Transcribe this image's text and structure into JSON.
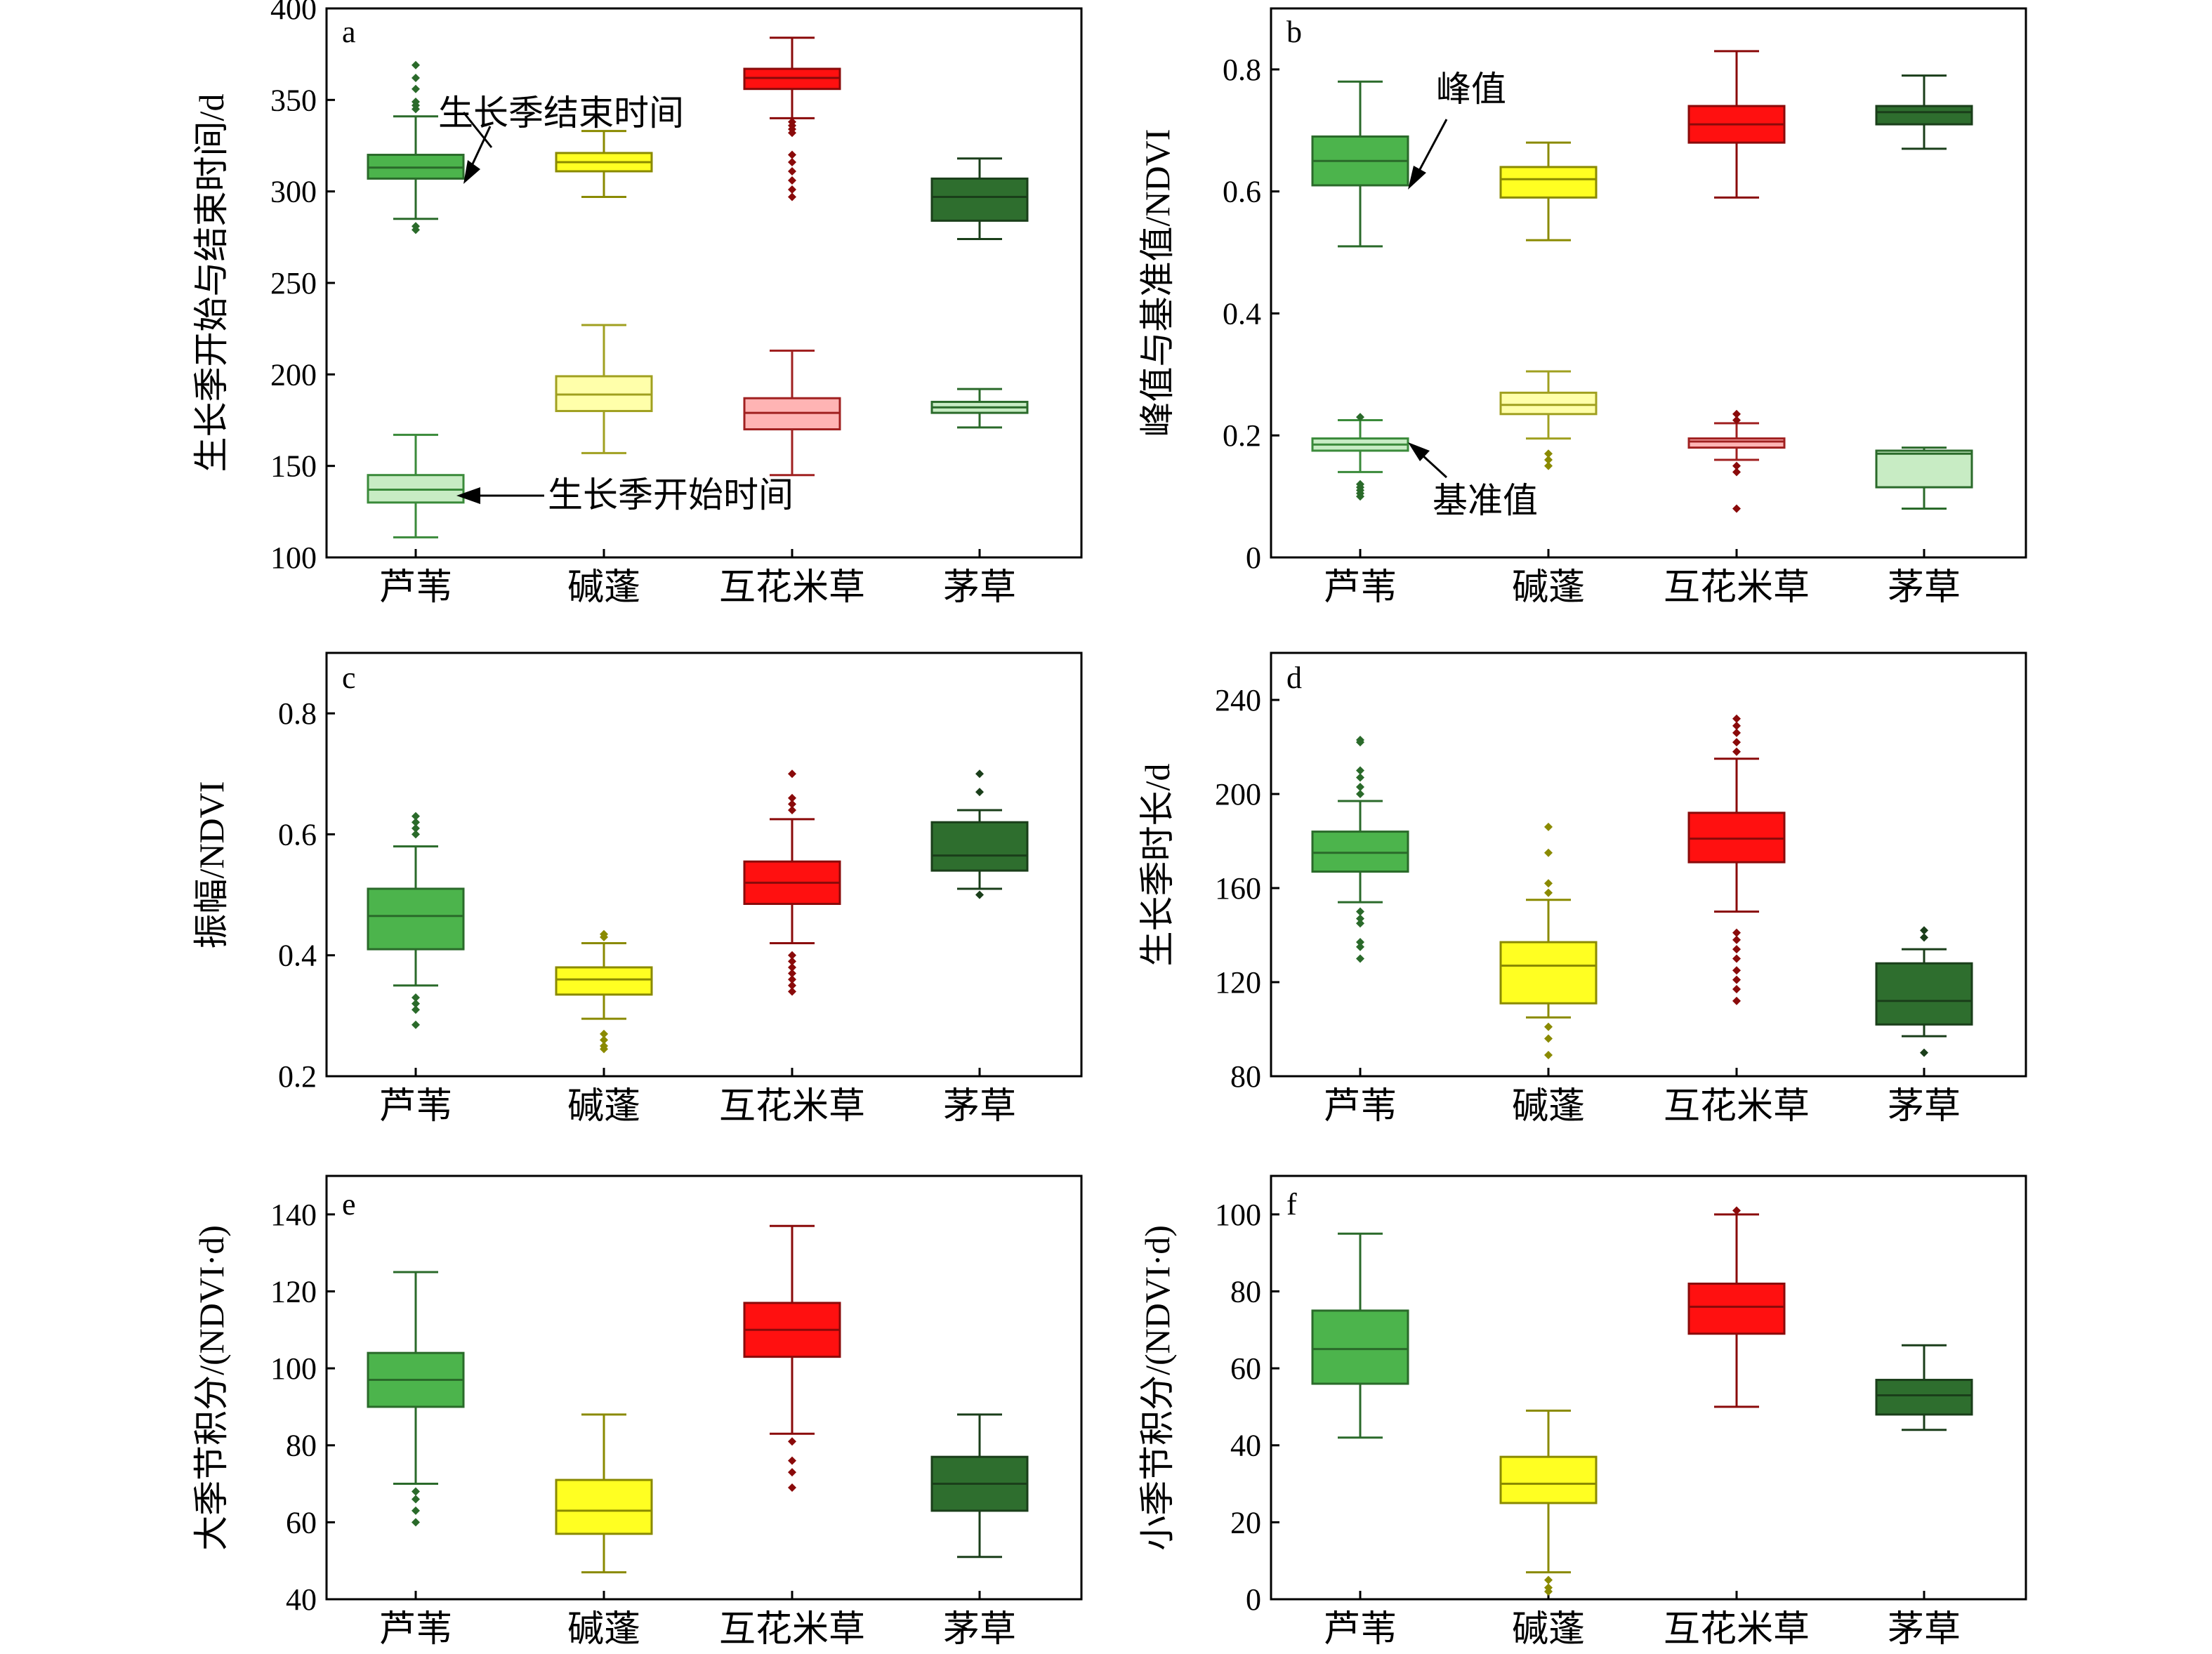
{
  "categories": [
    "芦苇",
    "碱蓬",
    "互花米草",
    "茅草"
  ],
  "colors": {
    "芦苇": {
      "fill": "#4cb44c",
      "dark": "#2a6a2a",
      "light": "#c8ecc4",
      "lightEdge": "#3a8a3a"
    },
    "碱蓬": {
      "fill": "#ffff22",
      "dark": "#8a8a00",
      "light": "#ffffaa",
      "lightEdge": "#a0a020"
    },
    "互花米草": {
      "fill": "#ff1010",
      "dark": "#8a0a0a",
      "light": "#ffb4b4",
      "lightEdge": "#a02020"
    },
    "茅草": {
      "fill": "#2e6e2e",
      "dark": "#1a3e1a",
      "light": "#c8ecc4",
      "lightEdge": "#2a6a2a"
    }
  },
  "chart_data": [
    {
      "type": "box",
      "panel_label": "a",
      "ylabel": "生长季开始与结束时间/d",
      "ylim": [
        100,
        400
      ],
      "yticks": [
        100,
        150,
        200,
        250,
        300,
        350,
        400
      ],
      "annotations": [
        "生长季结束时间",
        "生长季开始时间"
      ],
      "series": [
        {
          "name": "生长季结束时间",
          "style": "fill",
          "boxes": [
            {
              "min": 285,
              "q1": 307,
              "median": 313,
              "q3": 320,
              "max": 341,
              "outliers": [
                279,
                281,
                345,
                347,
                349,
                356,
                362,
                369
              ]
            },
            {
              "min": 297,
              "q1": 311,
              "median": 316,
              "q3": 321,
              "max": 333,
              "outliers": []
            },
            {
              "min": 340,
              "q1": 356,
              "median": 362,
              "q3": 367,
              "max": 384,
              "outliers": [
                297,
                301,
                306,
                311,
                316,
                320,
                332,
                334,
                336,
                338
              ]
            },
            {
              "min": 274,
              "q1": 284,
              "median": 297,
              "q3": 307,
              "max": 318,
              "outliers": []
            }
          ]
        },
        {
          "name": "生长季开始时间",
          "style": "light",
          "boxes": [
            {
              "min": 111,
              "q1": 130,
              "median": 137,
              "q3": 145,
              "max": 167,
              "outliers": []
            },
            {
              "min": 157,
              "q1": 180,
              "median": 189,
              "q3": 199,
              "max": 227,
              "outliers": []
            },
            {
              "min": 145,
              "q1": 170,
              "median": 179,
              "q3": 187,
              "max": 213,
              "outliers": []
            },
            {
              "min": 171,
              "q1": 179,
              "median": 182,
              "q3": 185,
              "max": 192,
              "outliers": []
            }
          ]
        }
      ]
    },
    {
      "type": "box",
      "panel_label": "b",
      "ylabel": "峰值与基准值/NDVI",
      "ylim": [
        0,
        0.9
      ],
      "yticks": [
        0,
        0.2,
        0.4,
        0.6,
        0.8
      ],
      "annotations": [
        "峰值",
        "基准值"
      ],
      "series": [
        {
          "name": "峰值",
          "style": "fill",
          "boxes": [
            {
              "min": 0.51,
              "q1": 0.61,
              "median": 0.65,
              "q3": 0.69,
              "max": 0.78,
              "outliers": []
            },
            {
              "min": 0.52,
              "q1": 0.59,
              "median": 0.62,
              "q3": 0.64,
              "max": 0.68,
              "outliers": []
            },
            {
              "min": 0.59,
              "q1": 0.68,
              "median": 0.71,
              "q3": 0.74,
              "max": 0.83,
              "outliers": []
            },
            {
              "min": 0.67,
              "q1": 0.71,
              "median": 0.73,
              "q3": 0.74,
              "max": 0.79,
              "outliers": []
            }
          ]
        },
        {
          "name": "基准值",
          "style": "light",
          "boxes": [
            {
              "min": 0.14,
              "q1": 0.175,
              "median": 0.185,
              "q3": 0.195,
              "max": 0.225,
              "outliers": [
                0.1,
                0.105,
                0.11,
                0.115,
                0.12,
                0.23
              ]
            },
            {
              "min": 0.195,
              "q1": 0.235,
              "median": 0.25,
              "q3": 0.27,
              "max": 0.305,
              "outliers": [
                0.15,
                0.16,
                0.17
              ]
            },
            {
              "min": 0.16,
              "q1": 0.18,
              "median": 0.19,
              "q3": 0.195,
              "max": 0.22,
              "outliers": [
                0.08,
                0.14,
                0.15,
                0.225,
                0.235
              ]
            },
            {
              "min": 0.08,
              "q1": 0.115,
              "median": 0.17,
              "q3": 0.175,
              "max": 0.18,
              "outliers": []
            }
          ]
        }
      ]
    },
    {
      "type": "box",
      "panel_label": "c",
      "ylabel": "振幅/NDVI",
      "ylim": [
        0.2,
        0.9
      ],
      "yticks": [
        0.2,
        0.4,
        0.6,
        0.8
      ],
      "series": [
        {
          "name": "",
          "style": "fill",
          "boxes": [
            {
              "min": 0.35,
              "q1": 0.41,
              "median": 0.465,
              "q3": 0.51,
              "max": 0.58,
              "outliers": [
                0.285,
                0.31,
                0.32,
                0.33,
                0.6,
                0.61,
                0.62,
                0.63
              ]
            },
            {
              "min": 0.295,
              "q1": 0.335,
              "median": 0.36,
              "q3": 0.38,
              "max": 0.42,
              "outliers": [
                0.245,
                0.25,
                0.26,
                0.27,
                0.43,
                0.435
              ]
            },
            {
              "min": 0.42,
              "q1": 0.485,
              "median": 0.52,
              "q3": 0.555,
              "max": 0.625,
              "outliers": [
                0.34,
                0.35,
                0.36,
                0.37,
                0.38,
                0.39,
                0.4,
                0.64,
                0.65,
                0.66,
                0.7
              ]
            },
            {
              "min": 0.51,
              "q1": 0.54,
              "median": 0.565,
              "q3": 0.62,
              "max": 0.64,
              "outliers": [
                0.5,
                0.67,
                0.7
              ]
            }
          ]
        }
      ]
    },
    {
      "type": "box",
      "panel_label": "d",
      "ylabel": "生长季时长/d",
      "ylim": [
        80,
        260
      ],
      "yticks": [
        80,
        120,
        160,
        200,
        240
      ],
      "series": [
        {
          "name": "",
          "style": "fill",
          "boxes": [
            {
              "min": 154,
              "q1": 167,
              "median": 175,
              "q3": 184,
              "max": 197,
              "outliers": [
                130,
                135,
                137,
                145,
                147,
                150,
                200,
                203,
                207,
                210,
                222,
                223
              ]
            },
            {
              "min": 105,
              "q1": 111,
              "median": 127,
              "q3": 137,
              "max": 155,
              "outliers": [
                89,
                96,
                101,
                158,
                162,
                175,
                186
              ]
            },
            {
              "min": 150,
              "q1": 171,
              "median": 181,
              "q3": 192,
              "max": 215,
              "outliers": [
                112,
                117,
                121,
                125,
                130,
                134,
                138,
                141,
                218,
                222,
                226,
                229,
                232
              ]
            },
            {
              "min": 97,
              "q1": 102,
              "median": 112,
              "q3": 128,
              "max": 134,
              "outliers": [
                90,
                139,
                142
              ]
            }
          ]
        }
      ]
    },
    {
      "type": "box",
      "panel_label": "e",
      "ylabel": "大季节积分/(NDVI·d)",
      "ylim": [
        40,
        150
      ],
      "yticks": [
        40,
        60,
        80,
        100,
        120,
        140
      ],
      "series": [
        {
          "name": "",
          "style": "fill",
          "boxes": [
            {
              "min": 70,
              "q1": 90,
              "median": 97,
              "q3": 104,
              "max": 125,
              "outliers": [
                60,
                63,
                66,
                68
              ]
            },
            {
              "min": 47,
              "q1": 57,
              "median": 63,
              "q3": 71,
              "max": 88,
              "outliers": []
            },
            {
              "min": 83,
              "q1": 103,
              "median": 110,
              "q3": 117,
              "max": 137,
              "outliers": [
                69,
                73,
                76,
                81
              ]
            },
            {
              "min": 51,
              "q1": 63,
              "median": 70,
              "q3": 77,
              "max": 88,
              "outliers": []
            }
          ]
        }
      ]
    },
    {
      "type": "box",
      "panel_label": "f",
      "ylabel": "小季节积分/(NDVI·d)",
      "ylim": [
        0,
        110
      ],
      "yticks": [
        0,
        20,
        40,
        60,
        80,
        100
      ],
      "series": [
        {
          "name": "",
          "style": "fill",
          "boxes": [
            {
              "min": 42,
              "q1": 56,
              "median": 65,
              "q3": 75,
              "max": 95,
              "outliers": []
            },
            {
              "min": 7,
              "q1": 25,
              "median": 30,
              "q3": 37,
              "max": 49,
              "outliers": [
                2,
                3,
                5
              ]
            },
            {
              "min": 50,
              "q1": 69,
              "median": 76,
              "q3": 82,
              "max": 100,
              "outliers": [
                101
              ]
            },
            {
              "min": 44,
              "q1": 48,
              "median": 53,
              "q3": 57,
              "max": 66,
              "outliers": []
            }
          ]
        }
      ]
    }
  ]
}
